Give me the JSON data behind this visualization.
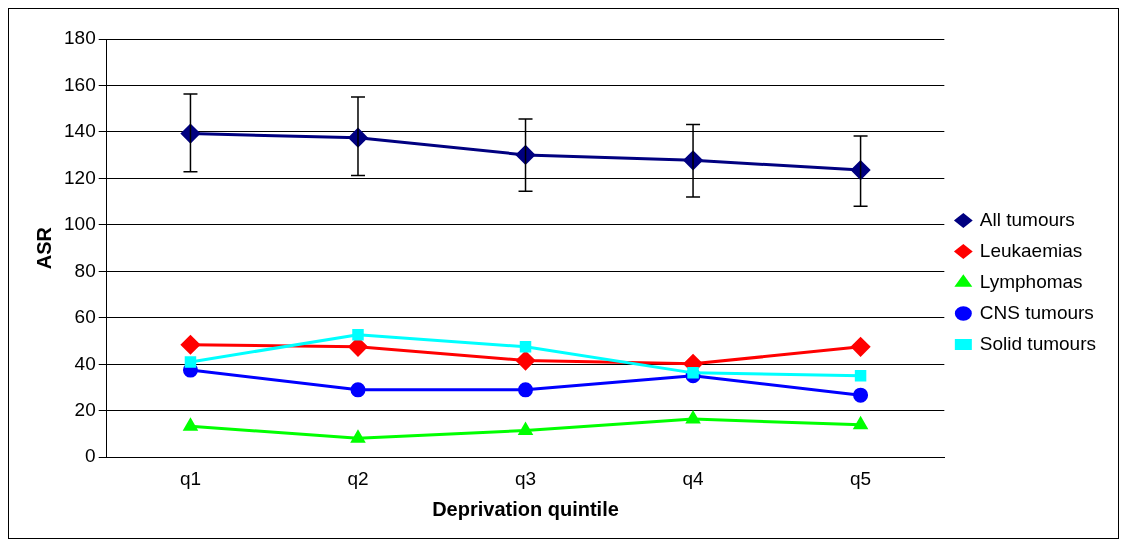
{
  "chart_data": {
    "type": "line",
    "xlabel": "Deprivation quintile",
    "ylabel": "ASR",
    "categories": [
      "q1",
      "q2",
      "q3",
      "q4",
      "q5"
    ],
    "series": [
      {
        "name": "All tumours",
        "color": "#000080",
        "marker": "diamond",
        "values": [
          139.3,
          137.5,
          130.1,
          127.8,
          123.6
        ],
        "errors": [
          [
            122.9,
            156.3
          ],
          [
            121.3,
            155
          ],
          [
            114.5,
            145.6
          ],
          [
            112,
            143.2
          ],
          [
            108,
            138.2
          ]
        ]
      },
      {
        "name": "Leukaemias",
        "color": "#ff0000",
        "marker": "diamond",
        "values": [
          48.4,
          47.5,
          41.6,
          40.2,
          47.5
        ]
      },
      {
        "name": "Lymphomas",
        "color": "#00ff00",
        "marker": "triangle",
        "values": [
          13.3,
          8.2,
          11.5,
          16.4,
          14
        ]
      },
      {
        "name": "CNS tumours",
        "color": "#0000ff",
        "marker": "circle",
        "values": [
          37.5,
          29,
          29,
          35.1,
          26.7
        ]
      },
      {
        "name": "Solid tumours",
        "color": "#00ffff",
        "marker": "square",
        "values": [
          41,
          52.7,
          47.5,
          36.3,
          35.1
        ]
      }
    ],
    "ylim": [
      0,
      180
    ],
    "yticks": [
      0,
      20,
      40,
      60,
      80,
      100,
      120,
      140,
      160,
      180
    ],
    "grid": "y",
    "legend": "right"
  }
}
